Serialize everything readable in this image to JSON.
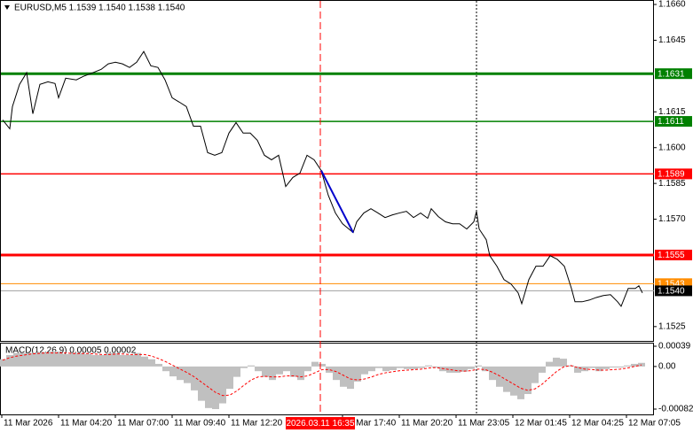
{
  "chart_data": [
    {
      "type": "line",
      "title": "EURUSD,M5  1.1539 1.1540 1.1538 1.1540",
      "xlim": [
        0,
        368.5
      ],
      "xticks": [
        {
          "value": 1,
          "label": "11 Mar 2026"
        },
        {
          "value": 33,
          "label": "11 Mar 04:20"
        },
        {
          "value": 65,
          "label": "11 Mar 07:00"
        },
        {
          "value": 97,
          "label": "11 Mar 09:40"
        },
        {
          "value": 129,
          "label": "11 Mar 12:20"
        },
        {
          "value": 193,
          "label": "11 Mar 17:40"
        },
        {
          "value": 225,
          "label": "11 Mar 20:20"
        },
        {
          "value": 257,
          "label": "11 Mar 23:05"
        },
        {
          "value": 289,
          "label": "12 Mar 01:45"
        },
        {
          "value": 321,
          "label": "12 Mar 04:25"
        },
        {
          "value": 353,
          "label": "12 Mar 07:05"
        }
      ],
      "ylim": [
        1.1519,
        1.16615
      ],
      "yticks": [
        {
          "value": 1.166,
          "label": "1.1660"
        },
        1.1645,
        1.1615,
        {
          "value": 1.16,
          "label": "1.1600"
        },
        1.1585,
        {
          "value": 1.157,
          "label": "1.1570"
        },
        1.1525
      ],
      "series": [
        {
          "color": "#000000",
          "x": [
            1.5,
            5.5,
            7,
            11,
            15,
            18.5,
            22.5,
            27,
            31,
            33,
            37,
            43,
            47,
            51,
            57,
            61,
            65,
            69,
            73,
            77,
            81,
            85,
            89,
            93,
            97,
            101,
            105,
            109,
            113,
            117,
            121,
            125,
            129,
            133,
            137,
            141,
            145,
            149,
            153,
            157,
            161,
            165,
            169,
            173,
            177,
            181,
            185,
            189,
            193,
            199,
            201,
            205,
            209,
            213,
            217,
            221,
            225,
            229,
            233,
            237,
            241,
            243,
            247,
            251,
            255,
            259,
            263,
            267,
            268.5,
            270,
            274,
            276,
            280,
            284,
            288,
            292,
            294,
            298,
            302,
            306,
            310,
            314,
            318,
            322,
            324,
            328,
            332,
            336,
            340,
            344,
            348,
            350,
            354,
            358,
            360,
            362
          ],
          "values": [
            1.16116,
            1.16079,
            1.16172,
            1.16265,
            1.16314,
            1.16142,
            1.16265,
            1.16276,
            1.16269,
            1.16209,
            1.16291,
            1.16284,
            1.16299,
            1.1631,
            1.16328,
            1.16351,
            1.16358,
            1.16351,
            1.16336,
            1.16358,
            1.16403,
            1.16343,
            1.16336,
            1.16284,
            1.16209,
            1.16191,
            1.16172,
            1.1609,
            1.1609,
            1.15979,
            1.15968,
            1.15979,
            1.16061,
            1.16105,
            1.16061,
            1.16061,
            1.16031,
            1.15968,
            1.15949,
            1.15968,
            1.15837,
            1.15875,
            1.15893,
            1.15968,
            1.15949,
            1.15904,
            1.158,
            1.15726,
            1.15681,
            1.15644,
            1.15689,
            1.15726,
            1.15744,
            1.15726,
            1.15707,
            1.15718,
            1.15726,
            1.15733,
            1.15707,
            1.15726,
            1.15704,
            1.15744,
            1.15711,
            1.15689,
            1.15681,
            1.15681,
            1.15659,
            1.15689,
            1.15733,
            1.15659,
            1.15614,
            1.15547,
            1.15503,
            1.15447,
            1.15428,
            1.15391,
            1.15346,
            1.15447,
            1.15503,
            1.15503,
            1.15547,
            1.15532,
            1.15503,
            1.1541,
            1.15354,
            1.15354,
            1.15361,
            1.15372,
            1.1538,
            1.15384,
            1.15354,
            1.15335,
            1.1541,
            1.1541,
            1.15421,
            1.15391
          ]
        }
      ],
      "trend_line": {
        "color": "#0000cc",
        "x": [
          181,
          199
        ],
        "values": [
          1.15904,
          1.15644
        ]
      },
      "levels": [
        {
          "value": 1.1631,
          "color": "#008000"
        },
        {
          "value": 1.1611,
          "color": "#008000"
        },
        {
          "value": 1.1589,
          "color": "#ff0000"
        },
        {
          "value": 1.1555,
          "color": "#ff0000"
        },
        {
          "value": 1.1543,
          "color": "#ff8c00"
        }
      ],
      "bid": {
        "value": 1.154,
        "label": "1.1540",
        "color": "#000000"
      },
      "highlight": {
        "value": 180.5,
        "label": "2026.03.11 16:35",
        "color": "#ff0000"
      },
      "day_separator": 268.5
    },
    {
      "type": "macd",
      "title": "MACD(12,26,9) 0.00005 0.00002",
      "ylim": [
        -0.00082,
        0.00039
      ],
      "yticks": [
        0.00039,
        {
          "value": 0,
          "label": "0.00"
        },
        -0.00082
      ],
      "x": [
        1.5,
        5.5,
        9.5,
        13.5,
        17.5,
        21.5,
        25.5,
        29.5,
        33.5,
        37.5,
        41.5,
        45.5,
        49.5,
        53.5,
        57.5,
        61.5,
        65.5,
        69.5,
        73.5,
        77.5,
        81.5,
        85.5,
        89.5,
        93.5,
        97.5,
        101.5,
        105.5,
        109.5,
        113.5,
        117.5,
        121.5,
        125.5,
        129.5,
        133.5,
        137.5,
        141.5,
        145.5,
        149.5,
        153.5,
        157.5,
        161.5,
        165.5,
        169.5,
        173.5,
        177.5,
        181.5,
        185.5,
        189.5,
        193.5,
        197.5,
        201.5,
        205.5,
        209.5,
        213.5,
        217.5,
        221.5,
        225.5,
        229.5,
        233.5,
        237.5,
        241.5,
        245.5,
        249.5,
        253.5,
        257.5,
        261.5,
        265.5,
        269.5,
        273.5,
        277.5,
        281.5,
        285.5,
        289.5,
        293.5,
        297.5,
        301.5,
        305.5,
        309.5,
        313.5,
        317.5,
        321.5,
        325.5,
        329.5,
        333.5,
        337.5,
        341.5,
        345.5,
        349.5,
        353.5,
        357.5,
        361.5
      ],
      "series": [
        {
          "type": "bar",
          "color": "#c0c0c0",
          "values": [
            0.00014,
            0.00022,
            0.00026,
            0.00026,
            0.00026,
            0.00027,
            0.00027,
            0.00029,
            0.00026,
            0.00024,
            0.00026,
            0.00026,
            0.00024,
            0.00022,
            0.00022,
            0.00026,
            0.00026,
            0.00022,
            0.00022,
            0.00026,
            0.00019,
            0.00014,
            5e-05,
            -9e-05,
            -0.00019,
            -0.00026,
            -0.00032,
            -0.00046,
            -0.00066,
            -0.0008,
            -0.00082,
            -0.00071,
            -0.00043,
            -0.0002,
            -3e-05,
            2e-05,
            -9e-05,
            -0.0002,
            -0.00026,
            -0.00015,
            -9e-05,
            -0.0002,
            -0.00026,
            -9e-05,
            9e-05,
            5e-05,
            -0.00012,
            -0.00026,
            -0.00039,
            -0.00043,
            -0.00029,
            -0.00015,
            -9e-05,
            -3e-05,
            -9e-05,
            -7e-05,
            -3e-05,
            -5e-05,
            -5e-05,
            -3e-05,
            2e-05,
            -2e-05,
            -9e-05,
            -0.00012,
            -0.00012,
            -0.0001,
            -5e-05,
            2e-05,
            -9e-05,
            -0.00026,
            -0.00039,
            -0.00049,
            -0.00056,
            -0.00063,
            -0.00053,
            -0.00032,
            -0.00012,
            9e-05,
            0.00017,
            0.00015,
            2e-05,
            -0.00012,
            -9e-05,
            -3e-05,
            -9e-05,
            -5e-05,
            -2e-05,
            -2e-05,
            2e-05,
            5e-05,
            7e-05
          ]
        },
        {
          "type": "line",
          "color": "#ff0000",
          "values": [
            0.00012,
            0.00017,
            0.0002,
            0.00022,
            0.00024,
            0.00025,
            0.00026,
            0.00026,
            0.00026,
            0.00026,
            0.00025,
            0.00025,
            0.00025,
            0.00024,
            0.00023,
            0.00023,
            0.00024,
            0.00024,
            0.00023,
            0.00023,
            0.00023,
            0.0002,
            0.00015,
            9e-05,
            2e-05,
            -5e-05,
            -0.00012,
            -0.0002,
            -0.0003,
            -0.0004,
            -0.0005,
            -0.00056,
            -0.00055,
            -0.00047,
            -0.00036,
            -0.00026,
            -0.0002,
            -0.00019,
            -0.0002,
            -0.0002,
            -0.00018,
            -0.00018,
            -0.0002,
            -0.00018,
            -0.00012,
            -6e-05,
            -6e-05,
            -0.0001,
            -0.00017,
            -0.00024,
            -0.00026,
            -0.00024,
            -0.0002,
            -0.00015,
            -0.00012,
            -0.0001,
            -8e-05,
            -7e-05,
            -6e-05,
            -5e-05,
            -3e-05,
            -2e-05,
            -4e-05,
            -6e-05,
            -8e-05,
            -9e-05,
            -8e-05,
            -5e-05,
            -6e-05,
            -0.00011,
            -0.00018,
            -0.00026,
            -0.00034,
            -0.00042,
            -0.00046,
            -0.00043,
            -0.00034,
            -0.00022,
            -0.0001,
            -1e-05,
            2e-05,
            -2e-05,
            -5e-05,
            -6e-05,
            -7e-05,
            -7e-05,
            -6e-05,
            -5e-05,
            -3e-05,
            0,
            3e-05
          ]
        }
      ]
    }
  ]
}
